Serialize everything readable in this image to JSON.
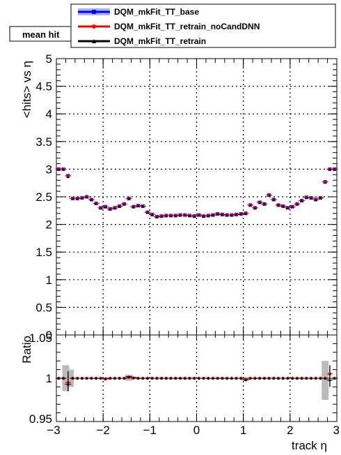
{
  "plot_title": "mean hit",
  "legend": {
    "entries": [
      {
        "label": "DQM_mkFit_TT_base",
        "color": "#0000ff",
        "band": "#aab4ff"
      },
      {
        "label": "DQM_mkFit_TT_retrain_noCandDNN",
        "color": "#ff0000",
        "band": "#ffaaaa"
      },
      {
        "label": "DQM_mkFit_TT_retrain",
        "color": "#000000",
        "band": "#bbbbbb"
      }
    ]
  },
  "chart_data": [
    {
      "type": "scatter",
      "title": "mean hit",
      "xlabel": "track η",
      "ylabel": "<hits> vs η",
      "xlim": [
        -3,
        3
      ],
      "ylim": [
        0,
        5
      ],
      "x_ticks": [
        "−3",
        "−2",
        "−1",
        "0",
        "1",
        "2",
        "3"
      ],
      "y_ticks": [
        "0",
        "0.5",
        "1",
        "1.5",
        "2",
        "2.5",
        "3",
        "3.5",
        "4",
        "4.5",
        "5"
      ],
      "grid": true,
      "legend_position": "top",
      "x": [
        -2.95,
        -2.85,
        -2.75,
        -2.65,
        -2.55,
        -2.45,
        -2.35,
        -2.25,
        -2.15,
        -2.05,
        -1.95,
        -1.85,
        -1.75,
        -1.65,
        -1.55,
        -1.45,
        -1.35,
        -1.25,
        -1.15,
        -1.05,
        -0.95,
        -0.85,
        -0.75,
        -0.65,
        -0.55,
        -0.45,
        -0.35,
        -0.25,
        -0.15,
        -0.05,
        0.05,
        0.15,
        0.25,
        0.35,
        0.45,
        0.55,
        0.65,
        0.75,
        0.85,
        0.95,
        1.05,
        1.15,
        1.25,
        1.35,
        1.45,
        1.55,
        1.65,
        1.75,
        1.85,
        1.95,
        2.05,
        2.15,
        2.25,
        2.35,
        2.45,
        2.55,
        2.65,
        2.75,
        2.85,
        2.95
      ],
      "series": [
        {
          "name": "DQM_mkFit_TT_base",
          "values": [
            3.0,
            3.0,
            2.88,
            2.47,
            2.47,
            2.48,
            2.5,
            2.45,
            2.38,
            2.3,
            2.32,
            2.28,
            2.3,
            2.33,
            2.37,
            2.47,
            2.32,
            2.34,
            2.33,
            2.22,
            2.18,
            2.14,
            2.15,
            2.16,
            2.16,
            2.16,
            2.17,
            2.17,
            2.16,
            2.15,
            2.17,
            2.15,
            2.16,
            2.17,
            2.19,
            2.18,
            2.17,
            2.17,
            2.18,
            2.19,
            2.2,
            2.35,
            2.3,
            2.4,
            2.37,
            2.53,
            2.45,
            2.35,
            2.33,
            2.3,
            2.32,
            2.37,
            2.43,
            2.49,
            2.48,
            2.45,
            2.48,
            2.77,
            3.0,
            3.0
          ]
        },
        {
          "name": "DQM_mkFit_TT_retrain_noCandDNN",
          "values": [
            3.0,
            3.0,
            2.87,
            2.47,
            2.47,
            2.48,
            2.5,
            2.45,
            2.38,
            2.3,
            2.32,
            2.28,
            2.3,
            2.33,
            2.37,
            2.47,
            2.32,
            2.34,
            2.33,
            2.22,
            2.18,
            2.14,
            2.15,
            2.16,
            2.16,
            2.16,
            2.17,
            2.17,
            2.16,
            2.15,
            2.17,
            2.15,
            2.16,
            2.17,
            2.19,
            2.18,
            2.17,
            2.17,
            2.18,
            2.19,
            2.2,
            2.35,
            2.3,
            2.4,
            2.37,
            2.53,
            2.45,
            2.35,
            2.33,
            2.3,
            2.32,
            2.37,
            2.43,
            2.49,
            2.48,
            2.45,
            2.48,
            2.77,
            3.0,
            3.0
          ]
        },
        {
          "name": "DQM_mkFit_TT_retrain",
          "values": [
            3.0,
            3.0,
            2.86,
            2.47,
            2.47,
            2.48,
            2.5,
            2.45,
            2.38,
            2.3,
            2.32,
            2.28,
            2.3,
            2.33,
            2.37,
            2.47,
            2.32,
            2.34,
            2.33,
            2.22,
            2.18,
            2.14,
            2.15,
            2.16,
            2.16,
            2.16,
            2.17,
            2.17,
            2.16,
            2.15,
            2.17,
            2.15,
            2.16,
            2.17,
            2.19,
            2.18,
            2.17,
            2.17,
            2.18,
            2.19,
            2.2,
            2.35,
            2.3,
            2.4,
            2.37,
            2.53,
            2.45,
            2.35,
            2.33,
            2.3,
            2.32,
            2.37,
            2.43,
            2.49,
            2.48,
            2.45,
            2.48,
            2.76,
            3.0,
            3.0
          ]
        }
      ]
    },
    {
      "type": "scatter",
      "title": "",
      "xlabel": "track η",
      "ylabel": "Ratio",
      "xlim": [
        -3,
        3
      ],
      "ylim": [
        0.95,
        1.05
      ],
      "x_ticks": [
        "−3",
        "−2",
        "−1",
        "0",
        "1",
        "2",
        "3"
      ],
      "y_ticks": [
        "0.95",
        "1",
        "1.05"
      ],
      "grid": true,
      "x": [
        -2.95,
        -2.85,
        -2.75,
        -2.65,
        -2.55,
        -2.45,
        -2.35,
        -2.25,
        -2.15,
        -2.05,
        -1.95,
        -1.85,
        -1.75,
        -1.65,
        -1.55,
        -1.45,
        -1.35,
        -1.25,
        -1.15,
        -1.05,
        -0.95,
        -0.85,
        -0.75,
        -0.65,
        -0.55,
        -0.45,
        -0.35,
        -0.25,
        -0.15,
        -0.05,
        0.05,
        0.15,
        0.25,
        0.35,
        0.45,
        0.55,
        0.65,
        0.75,
        0.85,
        0.95,
        1.05,
        1.15,
        1.25,
        1.35,
        1.45,
        1.55,
        1.65,
        1.75,
        1.85,
        1.95,
        2.05,
        2.15,
        2.25,
        2.35,
        2.45,
        2.55,
        2.65,
        2.75,
        2.85,
        2.95
      ],
      "series": [
        {
          "name": "DQM_mkFit_TT_retrain_noCandDNN",
          "values": [
            1.0,
            1.0,
            0.995,
            1.0,
            1.0,
            1.0,
            1.0,
            1.0,
            1.0,
            1.0,
            0.999,
            1.0,
            1.0,
            1.0,
            1.0,
            1.001,
            1.0,
            1.0,
            1.0,
            1.0,
            1.0,
            1.0,
            1.0,
            1.0,
            1.0,
            1.0,
            1.0,
            1.0,
            1.0,
            1.0,
            1.0,
            1.0,
            1.0,
            1.0,
            1.0,
            1.0,
            1.0,
            1.0,
            1.0,
            1.0,
            0.999,
            1.0,
            1.0,
            1.0,
            1.0,
            1.0,
            1.0,
            1.0,
            1.0,
            1.0,
            1.0,
            1.0,
            1.0,
            1.0,
            1.0,
            1.0,
            1.0,
            1.0,
            1.005,
            1.0
          ]
        },
        {
          "name": "DQM_mkFit_TT_retrain",
          "values": [
            1.0,
            1.0,
            0.993,
            1.0,
            1.0,
            1.0,
            1.0,
            1.0,
            1.0,
            1.0,
            1.0,
            1.0,
            1.0,
            1.0,
            1.0,
            1.002,
            1.001,
            1.0,
            1.0,
            1.0,
            1.0,
            1.0,
            1.0,
            1.0,
            1.0,
            1.0,
            1.0,
            1.0,
            1.0,
            1.0,
            1.0,
            1.0,
            1.0,
            1.0,
            1.0,
            1.0,
            1.0,
            1.0,
            1.0,
            1.0,
            0.998,
            1.0,
            1.0,
            1.0,
            1.0,
            1.0,
            1.0,
            1.0,
            1.0,
            1.0,
            1.0,
            1.0,
            1.0,
            1.0,
            1.0,
            1.0,
            1.0,
            1.0,
            0.998,
            1.0
          ]
        }
      ]
    }
  ]
}
